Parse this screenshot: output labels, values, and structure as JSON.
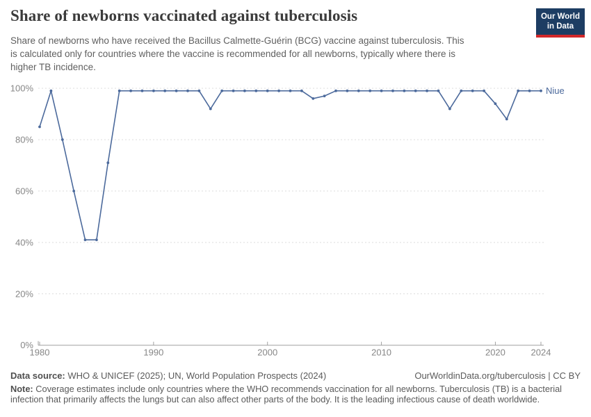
{
  "header": {
    "title": "Share of newborns vaccinated against tuberculosis",
    "subtitle": "Share of newborns who have received the Bacillus Calmette-Guérin (BCG) vaccine against tuberculosis. This\nis calculated only for countries where the vaccine is recommended for all newborns, typically where there is\nhigher TB incidence.",
    "logo": {
      "line1": "Our World",
      "line2": "in Data",
      "bg_color": "#1d3d63",
      "accent_color": "#d2282a"
    }
  },
  "chart_data": {
    "type": "line",
    "title": "Share of newborns vaccinated against tuberculosis",
    "xlabel": "",
    "ylabel": "",
    "xlim": [
      1980,
      2024
    ],
    "ylim": [
      0,
      100
    ],
    "grid": "dashed-horizontal",
    "legend_position": "end-of-line-label",
    "x_ticks": [
      1980,
      1990,
      2000,
      2010,
      2020,
      2024
    ],
    "y_ticks": [
      0,
      20,
      40,
      60,
      80,
      100
    ],
    "y_tick_suffix": "%",
    "entity_label": "Niue",
    "colors": {
      "line": "#4c6a9c",
      "grid": "#dcdcdc",
      "axis": "#a0a0a0",
      "tick_label": "#878787"
    },
    "series": [
      {
        "name": "Niue",
        "color": "#4c6a9c",
        "years": [
          1980,
          1981,
          1982,
          1983,
          1984,
          1985,
          1986,
          1987,
          1988,
          1989,
          1990,
          1991,
          1992,
          1993,
          1994,
          1995,
          1996,
          1997,
          1998,
          1999,
          2000,
          2001,
          2002,
          2003,
          2004,
          2005,
          2006,
          2007,
          2008,
          2009,
          2010,
          2011,
          2012,
          2013,
          2014,
          2015,
          2016,
          2017,
          2018,
          2019,
          2020,
          2021,
          2022,
          2023,
          2024
        ],
        "values": [
          85,
          99,
          80,
          60,
          41,
          41,
          71,
          99,
          99,
          99,
          99,
          99,
          99,
          99,
          99,
          92,
          99,
          99,
          99,
          99,
          99,
          99,
          99,
          99,
          96,
          97,
          99,
          99,
          99,
          99,
          99,
          99,
          99,
          99,
          99,
          99,
          92,
          99,
          99,
          99,
          94,
          88,
          99,
          99,
          99
        ]
      }
    ]
  },
  "footer": {
    "datasource_label": "Data source:",
    "datasource_text": " WHO & UNICEF (2025); UN, World Population Prospects (2024)",
    "license": "OurWorldinData.org/tuberculosis | CC BY",
    "note_label": "Note:",
    "note_text": " Coverage estimates include only countries where the WHO recommends vaccination for all newborns. Tuberculosis (TB) is a bacterial infection that primarily affects the lungs but can also affect other parts of the body. It is the leading infectious cause of death worldwide."
  }
}
